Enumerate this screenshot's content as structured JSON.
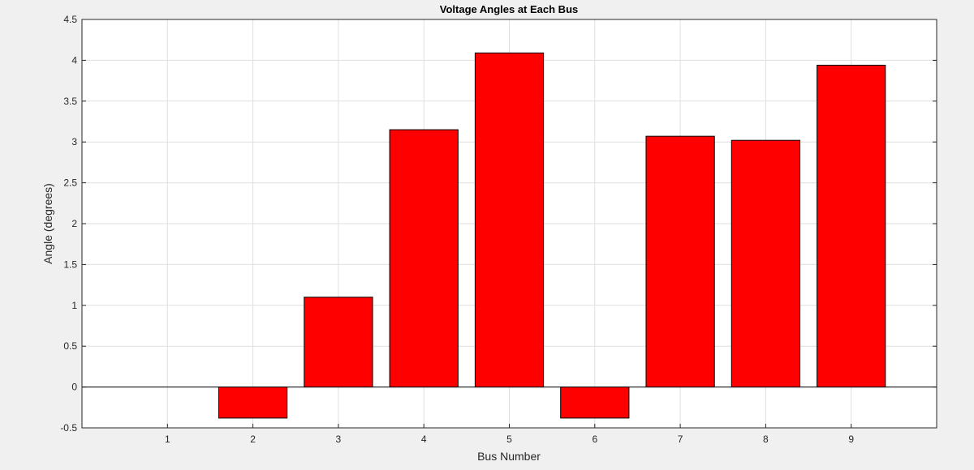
{
  "chart_data": {
    "type": "bar",
    "title": "Voltage Angles at Each Bus",
    "xlabel": "Bus Number",
    "ylabel": "Angle (degrees)",
    "categories": [
      "1",
      "2",
      "3",
      "4",
      "5",
      "6",
      "7",
      "8",
      "9"
    ],
    "values": [
      0,
      -0.38,
      1.1,
      3.15,
      4.09,
      -0.38,
      3.07,
      3.02,
      3.94
    ],
    "ylim": [
      -0.5,
      4.5
    ],
    "xlim": [
      0,
      10
    ],
    "yticks": [
      "-0.5",
      "0",
      "0.5",
      "1",
      "1.5",
      "2",
      "2.5",
      "3",
      "3.5",
      "4",
      "4.5"
    ],
    "grid": true,
    "bar_color": "#ff0000",
    "edge_color": "#000000",
    "background": "#f0f0f0",
    "plot_background": "#ffffff"
  }
}
